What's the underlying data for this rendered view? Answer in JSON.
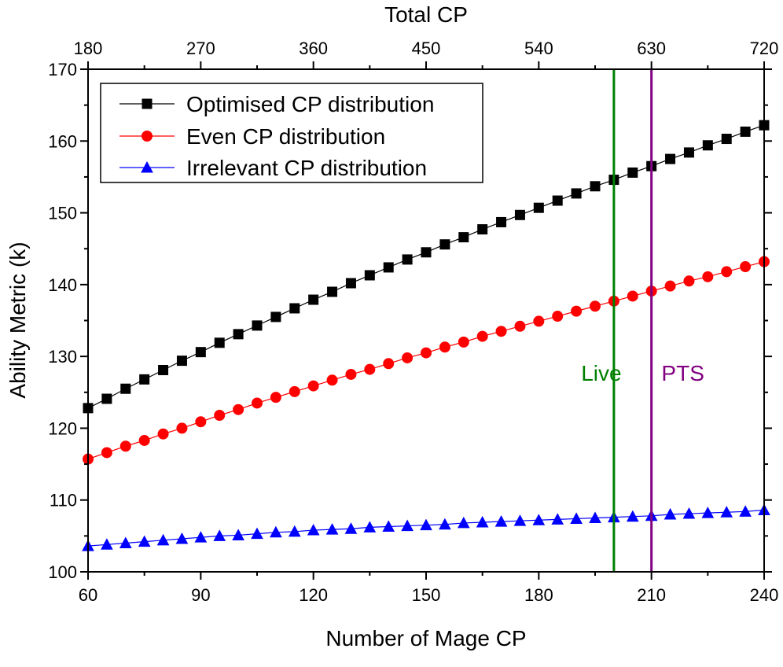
{
  "chart_data": {
    "type": "line",
    "xlabel": "Number of Mage CP",
    "x2label": "Total CP",
    "ylabel": "Ability Metric (k)",
    "xlim": [
      60,
      240
    ],
    "ylim": [
      100,
      170
    ],
    "x_ticks": [
      "60",
      "90",
      "120",
      "150",
      "180",
      "210",
      "240"
    ],
    "x2_ticks": [
      "180",
      "270",
      "360",
      "450",
      "540",
      "630",
      "720"
    ],
    "y_ticks": [
      "100",
      "110",
      "120",
      "130",
      "140",
      "150",
      "160",
      "170"
    ],
    "x": [
      60,
      65,
      70,
      75,
      80,
      85,
      90,
      95,
      100,
      105,
      110,
      115,
      120,
      125,
      130,
      135,
      140,
      145,
      150,
      155,
      160,
      165,
      170,
      175,
      180,
      185,
      190,
      195,
      200,
      205,
      210,
      215,
      220,
      225,
      230,
      235,
      240
    ],
    "series": [
      {
        "name": "Optimised CP distribution",
        "color": "#000000",
        "marker": "square",
        "values": [
          122.8,
          124.1,
          125.5,
          126.8,
          128.1,
          129.4,
          130.6,
          131.9,
          133.1,
          134.3,
          135.5,
          136.7,
          137.9,
          139.0,
          140.2,
          141.3,
          142.4,
          143.5,
          144.5,
          145.6,
          146.6,
          147.7,
          148.7,
          149.7,
          150.7,
          151.7,
          152.7,
          153.7,
          154.6,
          155.6,
          156.5,
          157.5,
          158.4,
          159.4,
          160.3,
          161.3,
          162.2
        ]
      },
      {
        "name": "Even CP distribution",
        "color": "#ff0000",
        "marker": "circle",
        "values": [
          115.7,
          116.6,
          117.5,
          118.3,
          119.2,
          120.0,
          120.9,
          121.8,
          122.6,
          123.5,
          124.3,
          125.1,
          125.9,
          126.7,
          127.5,
          128.2,
          129.0,
          129.8,
          130.5,
          131.3,
          132.0,
          132.8,
          133.5,
          134.2,
          134.9,
          135.6,
          136.3,
          137.0,
          137.7,
          138.4,
          139.1,
          139.8,
          140.5,
          141.1,
          141.8,
          142.5,
          143.2
        ]
      },
      {
        "name": "Irrelevant CP distribution",
        "color": "#0000ff",
        "marker": "triangle",
        "values": [
          103.6,
          103.8,
          104.0,
          104.2,
          104.4,
          104.6,
          104.8,
          105.0,
          105.1,
          105.3,
          105.5,
          105.6,
          105.8,
          105.9,
          106.0,
          106.2,
          106.3,
          106.4,
          106.5,
          106.6,
          106.8,
          106.9,
          107.0,
          107.1,
          107.2,
          107.3,
          107.4,
          107.5,
          107.6,
          107.7,
          107.8,
          108.0,
          108.1,
          108.2,
          108.3,
          108.4,
          108.6
        ]
      }
    ],
    "vlines": [
      {
        "x": 200,
        "label": "Live",
        "color": "#008000"
      },
      {
        "x": 210,
        "label": "PTS",
        "color": "#800080"
      }
    ],
    "legend": "top-left"
  }
}
